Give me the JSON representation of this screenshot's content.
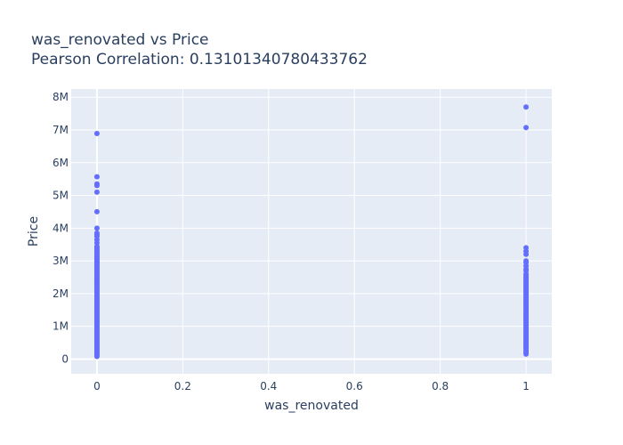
{
  "chart_data": {
    "type": "scatter",
    "title_lines": [
      "was_renovated vs Price",
      "Pearson Correlation: 0.13101340780433762"
    ],
    "xlabel": "was_renovated",
    "ylabel": "Price",
    "xlim": [
      -0.06,
      1.06
    ],
    "ylim": [
      -450000,
      8250000
    ],
    "x_ticks": [
      0,
      0.2,
      0.4,
      0.6,
      0.8,
      1
    ],
    "x_tick_labels": [
      "0",
      "0.2",
      "0.4",
      "0.6",
      "0.8",
      "1"
    ],
    "y_ticks": [
      0,
      1000000,
      2000000,
      3000000,
      4000000,
      5000000,
      6000000,
      7000000,
      8000000
    ],
    "y_tick_labels": [
      "0",
      "1M",
      "2M",
      "3M",
      "4M",
      "5M",
      "6M",
      "7M",
      "8M"
    ],
    "grid": true,
    "marker_color": "#636efa",
    "plot_bg": "#e5ecf6",
    "series": [
      {
        "x_value": 0,
        "dense_ranges": [
          [
            80000,
            3450000
          ]
        ],
        "points": [
          3550000,
          3650000,
          3750000,
          3800000,
          3850000,
          4000000,
          4500000,
          5100000,
          5300000,
          5350000,
          5570000,
          6890000
        ]
      },
      {
        "x_value": 1,
        "dense_ranges": [
          [
            150000,
            2550000
          ]
        ],
        "points": [
          2600000,
          2700000,
          2750000,
          2850000,
          2950000,
          3000000,
          3200000,
          3300000,
          3400000,
          7070000,
          7700000
        ]
      }
    ]
  }
}
